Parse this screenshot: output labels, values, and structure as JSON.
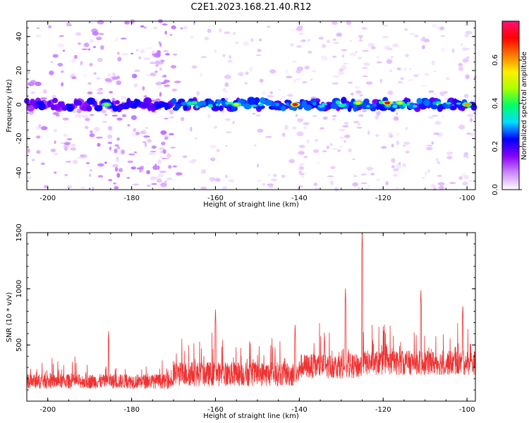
{
  "title": "C2E1.2023.168.21.40.R12",
  "chart_data": [
    {
      "type": "heatmap",
      "xlabel": "Height of straight line (km)",
      "ylabel": "Frequency (Hz)",
      "xlim": [
        -205,
        -98
      ],
      "ylim": [
        -50,
        49
      ],
      "xticks": [
        -200,
        -180,
        -160,
        -140,
        -120,
        -100
      ],
      "yticks": [
        -40,
        -20,
        0,
        20,
        40
      ],
      "colorbar": {
        "label": "Normalized spectral amplitude",
        "range": [
          0.0,
          0.78
        ],
        "ticks": [
          "0.0",
          "0.2",
          "0.4",
          "0.6"
        ],
        "tick_values": [
          0.0,
          0.2,
          0.4,
          0.6
        ],
        "colormap": [
          "#ffffff",
          "#cc88ff",
          "#8800ff",
          "#0000ff",
          "#00ddff",
          "#00ff66",
          "#aaff00",
          "#ffee00",
          "#ff7700",
          "#ff0000",
          "#ff1177"
        ]
      },
      "dominant_band": {
        "frequency_hz": 0,
        "halfwidth_hz": 4
      },
      "hotspots": [
        {
          "x": -186,
          "y": 0,
          "v": 0.45
        },
        {
          "x": -165,
          "y": 1,
          "v": 0.4
        },
        {
          "x": -155,
          "y": 0,
          "v": 0.5
        },
        {
          "x": -141,
          "y": 0,
          "v": 0.7
        },
        {
          "x": -126,
          "y": 1,
          "v": 0.55
        },
        {
          "x": -119,
          "y": 1,
          "v": 0.7
        },
        {
          "x": -116,
          "y": 1,
          "v": 0.5
        },
        {
          "x": -100,
          "y": 0,
          "v": 0.6
        }
      ]
    },
    {
      "type": "line",
      "xlabel": "Height of straight line (km)",
      "ylabel": "SNR (10 * v/v)",
      "xlim": [
        -205,
        -98
      ],
      "ylim": [
        0,
        1500
      ],
      "xticks": [
        -200,
        -180,
        -160,
        -140,
        -120,
        -100
      ],
      "yticks": [
        500,
        1000,
        1500
      ],
      "color": "#ee3333",
      "peaks": [
        {
          "x": -185.5,
          "y": 640
        },
        {
          "x": -160,
          "y": 830
        },
        {
          "x": -141,
          "y": 700
        },
        {
          "x": -134,
          "y": 620
        },
        {
          "x": -129,
          "y": 1010
        },
        {
          "x": -125,
          "y": 1500
        },
        {
          "x": -111,
          "y": 1000
        },
        {
          "x": -101,
          "y": 870
        }
      ]
    }
  ]
}
